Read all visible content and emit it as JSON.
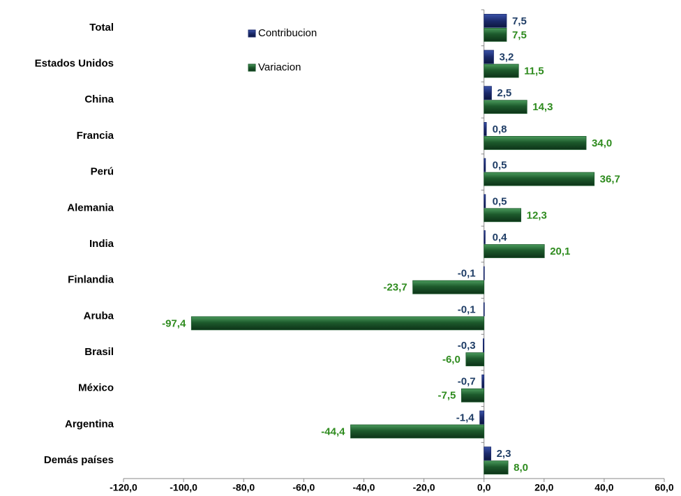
{
  "chart_data": {
    "type": "hbar",
    "categories": [
      "Total",
      "Estados Unidos",
      "China",
      "Francia",
      "Perú",
      "Alemania",
      "India",
      "Finlandia",
      "Aruba",
      "Brasil",
      "México",
      "Argentina",
      "Demás países"
    ],
    "series": [
      {
        "name": "Contribucion",
        "color": "#1b2a6b",
        "label_color": "#1f3d66",
        "values": [
          7.5,
          3.2,
          2.5,
          0.8,
          0.5,
          0.5,
          0.4,
          -0.1,
          -0.1,
          -0.3,
          -0.7,
          -1.4,
          2.3
        ],
        "value_labels": [
          "7,5",
          "3,2",
          "2,5",
          "0,8",
          "0,5",
          "0,5",
          "0,4",
          "-0,1",
          "-0,1",
          "-0,3",
          "-0,7",
          "-1,4",
          "2,3"
        ]
      },
      {
        "name": "Variacion",
        "color": "#1d5a2c",
        "label_color": "#2e8b1e",
        "values": [
          7.5,
          11.5,
          14.3,
          34.0,
          36.7,
          12.3,
          20.1,
          -23.7,
          -97.4,
          -6.0,
          -7.5,
          -44.4,
          8.0
        ],
        "value_labels": [
          "7,5",
          "11,5",
          "14,3",
          "34,0",
          "36,7",
          "12,3",
          "20,1",
          "-23,7",
          "-97,4",
          "-6,0",
          "-7,5",
          "-44,4",
          "8,0"
        ]
      }
    ],
    "xlim": [
      -120,
      60
    ],
    "xticks": [
      {
        "value": -120,
        "label": "-120,0"
      },
      {
        "value": -100,
        "label": "-100,0"
      },
      {
        "value": -80,
        "label": "-80,0"
      },
      {
        "value": -60,
        "label": "-60,0"
      },
      {
        "value": -40,
        "label": "-40,0"
      },
      {
        "value": -20,
        "label": "-20,0"
      },
      {
        "value": 0,
        "label": "0,0"
      },
      {
        "value": 20,
        "label": "20,0"
      },
      {
        "value": 40,
        "label": "40,0"
      },
      {
        "value": 60,
        "label": "60,0"
      }
    ],
    "grid": false
  }
}
